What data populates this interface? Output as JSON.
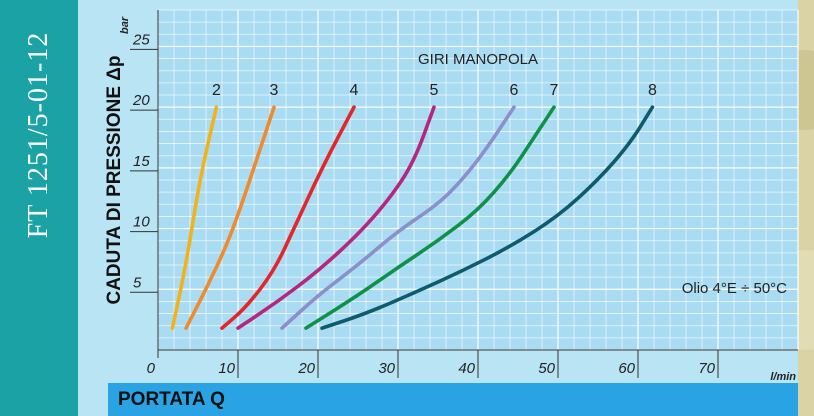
{
  "document": {
    "code": "FT 1251/5-01-12"
  },
  "chart_data": {
    "type": "line",
    "title": "GIRI MANOPOLA",
    "xlabel": "PORTATA Q",
    "ylabel": "CADUTA DI PRESSIONE Δp",
    "x_unit": "l/min",
    "y_unit": "bar",
    "annotation": "Olio 4°E ÷ 50°C",
    "xlim": [
      0,
      80
    ],
    "ylim": [
      0,
      28
    ],
    "x_ticks": [
      0,
      10,
      20,
      30,
      40,
      50,
      60,
      70
    ],
    "y_ticks": [
      5,
      10,
      15,
      20,
      25
    ],
    "series": [
      {
        "name": "2",
        "color": "#f2b21c",
        "points": [
          [
            1.8,
            1.8
          ],
          [
            3.5,
            7
          ],
          [
            5.2,
            14
          ],
          [
            7.3,
            20
          ]
        ]
      },
      {
        "name": "3",
        "color": "#f08a2c",
        "points": [
          [
            3.5,
            1.8
          ],
          [
            6,
            5
          ],
          [
            8.5,
            8.5
          ],
          [
            10.2,
            11.5
          ],
          [
            12.5,
            16
          ],
          [
            14.5,
            20
          ]
        ]
      },
      {
        "name": "4",
        "color": "#e3262a",
        "points": [
          [
            8,
            1.8
          ],
          [
            11,
            3.5
          ],
          [
            14.5,
            6.5
          ],
          [
            17,
            10
          ],
          [
            20.5,
            15
          ],
          [
            24.5,
            20
          ]
        ]
      },
      {
        "name": "5",
        "color": "#b5267e",
        "points": [
          [
            10,
            1.8
          ],
          [
            15,
            4
          ],
          [
            20,
            6.5
          ],
          [
            25,
            9.5
          ],
          [
            29,
            12.5
          ],
          [
            32,
            15.5
          ],
          [
            34.5,
            20
          ]
        ]
      },
      {
        "name": "6",
        "color": "#8c8fc9",
        "points": [
          [
            15.5,
            1.8
          ],
          [
            20,
            4.5
          ],
          [
            25,
            7
          ],
          [
            30,
            9.8
          ],
          [
            35,
            12
          ],
          [
            38,
            14
          ],
          [
            41,
            16.5
          ],
          [
            44.5,
            20
          ]
        ]
      },
      {
        "name": "7",
        "color": "#10914a",
        "points": [
          [
            18.5,
            1.8
          ],
          [
            25,
            4.5
          ],
          [
            30,
            6.8
          ],
          [
            35,
            9
          ],
          [
            40,
            11.5
          ],
          [
            44,
            14.5
          ],
          [
            47,
            17.5
          ],
          [
            49.5,
            20
          ]
        ]
      },
      {
        "name": "8",
        "color": "#0f5b6e",
        "points": [
          [
            20.5,
            1.8
          ],
          [
            26,
            3
          ],
          [
            32,
            4.7
          ],
          [
            38,
            6.5
          ],
          [
            44,
            8.5
          ],
          [
            50,
            11
          ],
          [
            55,
            14
          ],
          [
            59,
            17
          ],
          [
            61.8,
            20
          ]
        ]
      }
    ]
  }
}
